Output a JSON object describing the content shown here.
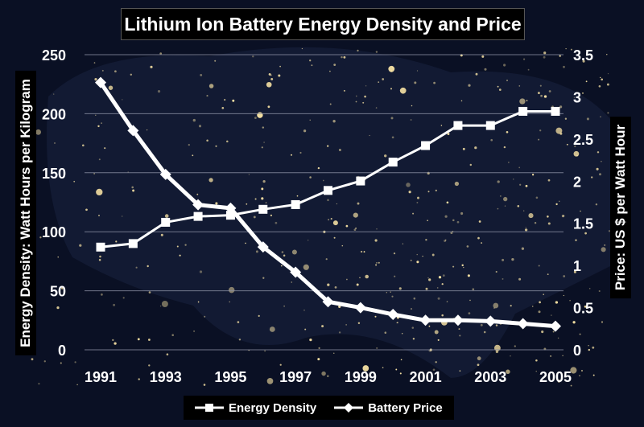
{
  "chart_data": {
    "type": "line",
    "title": "Lithium Ion Battery Energy Density and Price",
    "xlabel": "",
    "ylabel": "Energy Density:  Watt Hours per Kilogram",
    "y2label": "Price:  US $ per Watt Hour",
    "x_tick_labels": [
      "1991",
      "1993",
      "1995",
      "1997",
      "1999",
      "2001",
      "2003",
      "2005"
    ],
    "x_range": [
      1991,
      2005
    ],
    "ylim": [
      0,
      250
    ],
    "y_ticks": [
      "0",
      "50",
      "100",
      "150",
      "200",
      "250"
    ],
    "y2lim": [
      0,
      3.5
    ],
    "y2_ticks": [
      "0",
      "0.5",
      "1",
      "1.5",
      "2",
      "2.5",
      "3",
      "3.5"
    ],
    "grid": true,
    "legend_position": "bottom",
    "x": [
      1991,
      1992,
      1993,
      1994,
      1995,
      1996,
      1997,
      1998,
      1999,
      2000,
      2001,
      2002,
      2003,
      2004,
      2005
    ],
    "series": [
      {
        "name": "Energy Density",
        "axis": "left",
        "marker": "square",
        "values": [
          87,
          90,
          108,
          113,
          114,
          119,
          123,
          135,
          143,
          159,
          173,
          190,
          190,
          202,
          202
        ]
      },
      {
        "name": "Battery Price",
        "axis": "right",
        "marker": "diamond",
        "values": [
          3.17,
          2.6,
          2.08,
          1.72,
          1.68,
          1.22,
          0.92,
          0.57,
          0.5,
          0.42,
          0.35,
          0.35,
          0.34,
          0.31,
          0.28
        ]
      }
    ],
    "colors": {
      "line": "#ffffff",
      "gridline": "#8a8fa3",
      "background": "#0a1024",
      "city_lights": "#ffe9a8"
    }
  }
}
